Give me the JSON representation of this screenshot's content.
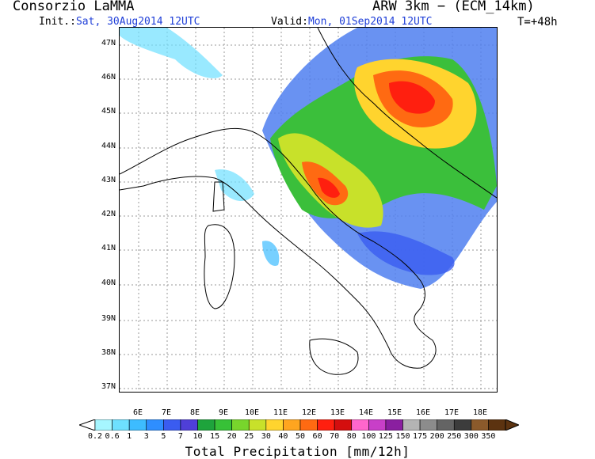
{
  "header": {
    "org": "Consorzio LaMMA",
    "model": "ARW 3km − (ECM_14km)",
    "init_label": "Init.:",
    "init_value": "Sat, 30Aug2014 12UTC",
    "valid_label": "Valid:",
    "valid_value": "Mon, 01Sep2014 12UTC",
    "forecast_step": "T=+48h"
  },
  "map": {
    "lat_labels": [
      "47N",
      "46N",
      "45N",
      "44N",
      "43N",
      "42N",
      "41N",
      "40N",
      "39N",
      "38N",
      "37N"
    ],
    "lon_labels": [
      "6E",
      "7E",
      "8E",
      "9E",
      "10E",
      "11E",
      "12E",
      "13E",
      "14E",
      "15E",
      "16E",
      "17E",
      "18E"
    ]
  },
  "legend": {
    "title": "Total Precipitation [mm/12h]",
    "ticks": [
      "0.2",
      "0.6",
      "1",
      "3",
      "5",
      "7",
      "10",
      "15",
      "20",
      "25",
      "30",
      "40",
      "50",
      "60",
      "70",
      "80",
      "100",
      "125",
      "150",
      "175",
      "200",
      "250",
      "300",
      "350"
    ],
    "colors": [
      "#a6f6ff",
      "#6ee0ff",
      "#3dbcff",
      "#2e8eff",
      "#3a5cf0",
      "#4f3fd8",
      "#1ea43c",
      "#37c137",
      "#78d52c",
      "#c8e12a",
      "#ffd42e",
      "#ffa51f",
      "#ff6a12",
      "#ff1f0f",
      "#d40e0e",
      "#ff66cc",
      "#c83fc8",
      "#8a1fa0",
      "#b4b4b4",
      "#8c8c8c",
      "#646464",
      "#3c3c3c",
      "#8b5a2b",
      "#5c3310"
    ]
  }
}
